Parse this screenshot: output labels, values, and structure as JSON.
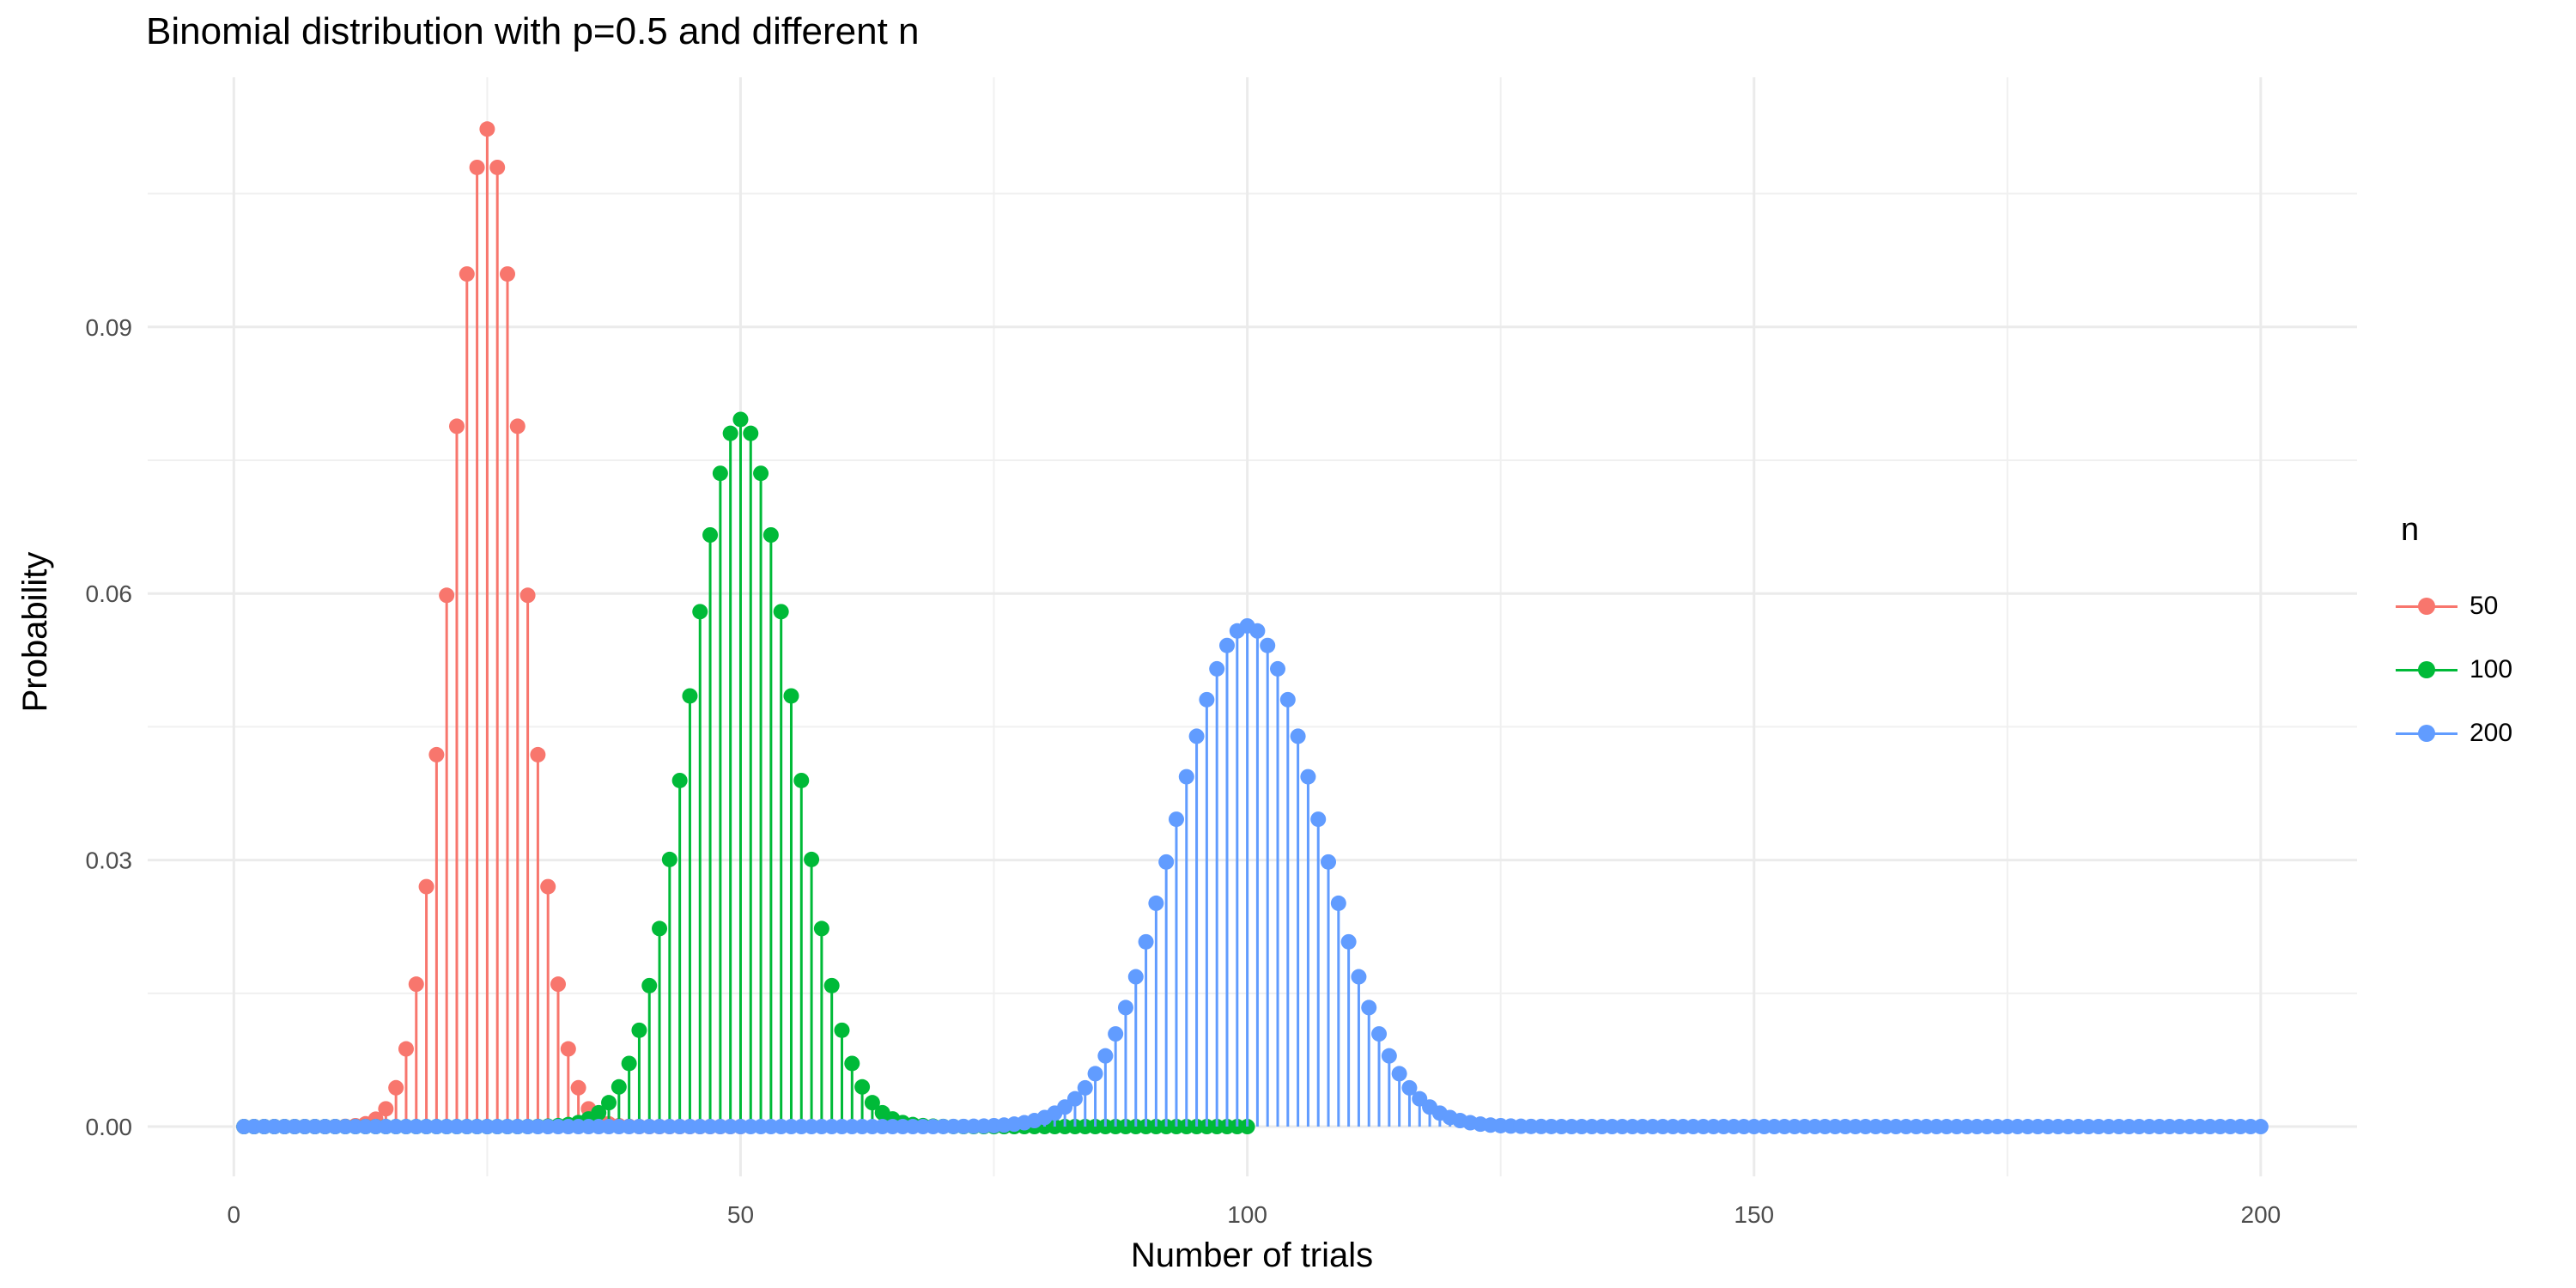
{
  "chart_data": {
    "type": "scatter",
    "title": "Binomial distribution with p=0.5 and different n",
    "xlabel": "Number of trials",
    "ylabel": "Probability",
    "xlim": [
      -8.5,
      209.5
    ],
    "ylim": [
      -0.0056,
      0.1181
    ],
    "x_ticks": [
      0,
      50,
      100,
      150,
      200
    ],
    "x_tick_labels": [
      "0",
      "50",
      "100",
      "150",
      "200"
    ],
    "y_ticks": [
      0.0,
      0.03,
      0.06,
      0.09
    ],
    "y_tick_labels": [
      "0.00",
      "0.03",
      "0.06",
      "0.09"
    ],
    "grid": true,
    "legend_title": "n",
    "legend_position": "right",
    "series": [
      {
        "name": "50",
        "n": 50,
        "p": 0.5,
        "color": "#F8766D",
        "x_range": [
          1,
          50
        ]
      },
      {
        "name": "100",
        "n": 100,
        "p": 0.5,
        "color": "#00BA38",
        "x_range": [
          1,
          100
        ]
      },
      {
        "name": "200",
        "n": 200,
        "p": 0.5,
        "color": "#619CFF",
        "x_range": [
          1,
          200
        ]
      }
    ]
  }
}
